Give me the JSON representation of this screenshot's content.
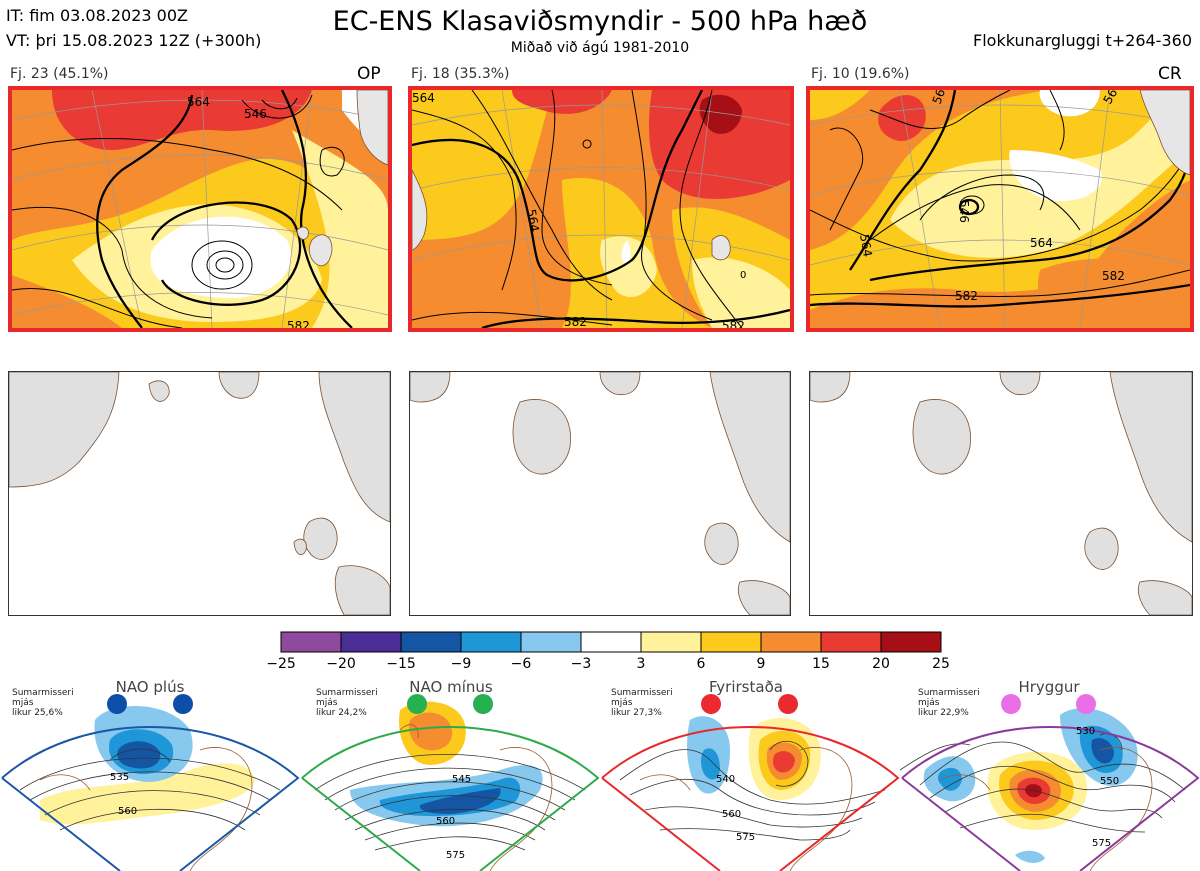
{
  "header": {
    "it": "IT: fim 03.08.2023 00Z",
    "vt": "VT: þri 15.08.2023 12Z  (+300h)",
    "title": "EC-ENS Klasaviðsmyndir - 500 hPa hæð",
    "subtitle": "Miðað við ágú 1981-2010",
    "window": "Flokkunargluggi t+264-360"
  },
  "clusters": [
    {
      "label": "Fj. 23 (45.1%)",
      "tag": "OP",
      "c1": "564",
      "c2": "546",
      "c3": "582"
    },
    {
      "label": "Fj. 18 (35.3%)",
      "tag": "",
      "c1": "564",
      "c2": "564",
      "c3": "582",
      "c4": "582",
      "c5": "0"
    },
    {
      "label": "Fj. 10 (19.6%)",
      "tag": "CR",
      "c1": "564",
      "c2": "564",
      "c3": "582",
      "c4": "582",
      "c5": "546",
      "c6": "564",
      "c7": "564"
    }
  ],
  "colorbar": {
    "ticks": [
      "−25",
      "−20",
      "−15",
      "−9",
      "−6",
      "−3",
      "3",
      "6",
      "9",
      "15",
      "20",
      "25"
    ],
    "colors": [
      "#8e4a9c",
      "#4a2e96",
      "#1456a4",
      "#1f96d8",
      "#86c8ee",
      "#ffffff",
      "#fff29a",
      "#fcca1c",
      "#f68c30",
      "#e93a33",
      "#a50f15"
    ]
  },
  "regimes": [
    {
      "name": "NAO plús",
      "note1": "Sumarmisseri",
      "note2": "mjás",
      "note3": "likur 25,6%",
      "c1": "535",
      "c2": "560",
      "border": "#1a57a6",
      "dot": "#0d4fa8"
    },
    {
      "name": "NAO mínus",
      "note1": "Sumarmisseri",
      "note2": "mjás",
      "note3": "likur 24,2%",
      "c1": "545",
      "c2": "560",
      "c3": "575",
      "border": "#2eaa4a",
      "dot": "#26b050"
    },
    {
      "name": "Fyrirstaða",
      "note1": "Sumarmisseri",
      "note2": "mjás",
      "note3": "likur 27,3%",
      "c1": "540",
      "c2": "560",
      "c3": "575",
      "border": "#e8282b",
      "dot": "#ea2a2e"
    },
    {
      "name": "Hryggur",
      "note1": "Sumarmisseri",
      "note2": "mjás",
      "note3": "likur 22,9%",
      "c1": "530",
      "c2": "550",
      "c3": "575",
      "border": "#8a3a9a",
      "dot": "#ea6ee6"
    }
  ]
}
